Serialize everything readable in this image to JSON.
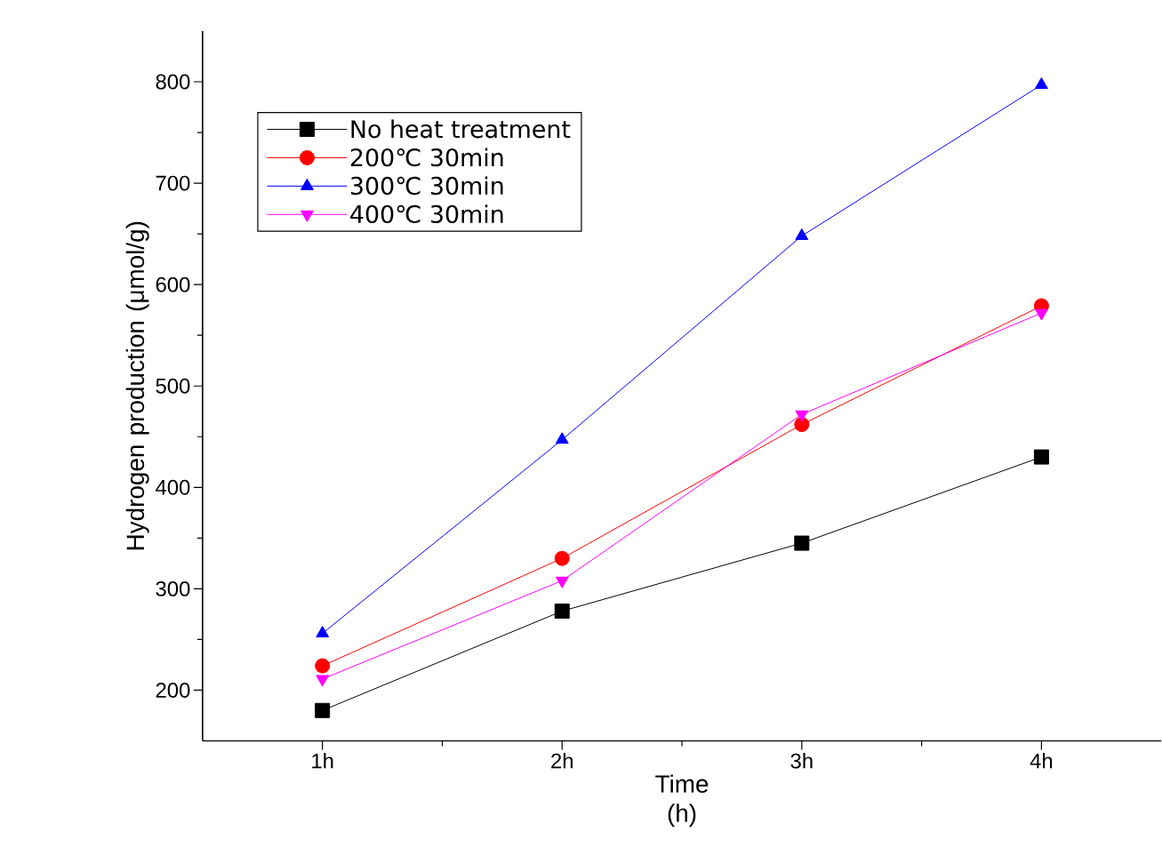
{
  "chart_data": {
    "type": "line",
    "xlabel": "Time (h)",
    "ylabel": "Hydrogen production (μmol/g)",
    "categories": [
      "1h",
      "2h",
      "3h",
      "4h"
    ],
    "series": [
      {
        "name": "No heat treatment",
        "color": "#000000",
        "marker": "square",
        "values": [
          180,
          278,
          345,
          430
        ]
      },
      {
        "name": "200℃ 30min",
        "color": "#ff0000",
        "marker": "circle",
        "values": [
          224,
          330,
          462,
          579
        ]
      },
      {
        "name": "300℃ 30min",
        "color": "#0000ff",
        "marker": "triangle",
        "values": [
          256,
          447,
          648,
          797
        ]
      },
      {
        "name": "400℃ 30min",
        "color": "#ff00ff",
        "marker": "triangle-down",
        "values": [
          211,
          308,
          472,
          572
        ]
      }
    ],
    "ylim": [
      150,
      850
    ],
    "yticks": [
      200,
      300,
      400,
      500,
      600,
      700,
      800
    ],
    "grid": false,
    "legend": "top left",
    "line_style": "solid"
  }
}
